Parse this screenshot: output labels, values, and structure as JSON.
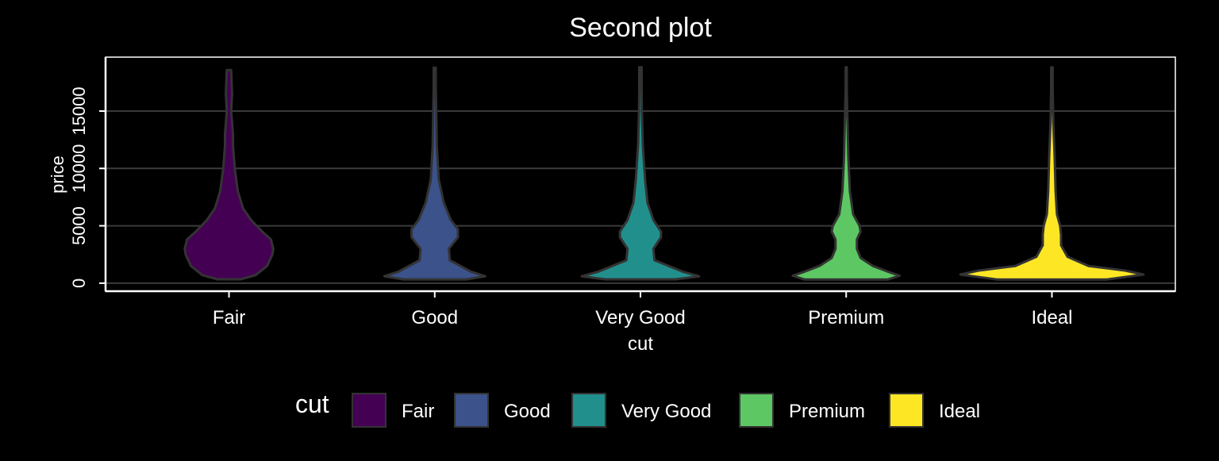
{
  "chart_data": {
    "type": "violin",
    "title": "Second plot",
    "xlabel": "cut",
    "ylabel": "price",
    "categories": [
      "Fair",
      "Good",
      "Very Good",
      "Premium",
      "Ideal"
    ],
    "ylim": [
      -700,
      19700
    ],
    "yticks": [
      0,
      5000,
      10000,
      15000
    ],
    "ytick_labels": [
      "0",
      "5000",
      "10000",
      "15000"
    ],
    "grid": true,
    "legend": {
      "title": "cut",
      "position": "bottom",
      "entries": [
        "Fair",
        "Good",
        "Very Good",
        "Premium",
        "Ideal"
      ]
    },
    "colors": [
      "#440154",
      "#3b528b",
      "#21908c",
      "#5dc863",
      "#fde725"
    ],
    "violin_outline_color": "#333333",
    "violins": [
      {
        "name": "Fair",
        "price_range": [
          337,
          18574
        ],
        "max_halfwidth_fraction": 0.43,
        "profile": [
          [
            337,
            0.26
          ],
          [
            700,
            0.6
          ],
          [
            1500,
            0.86
          ],
          [
            2500,
            0.98
          ],
          [
            3000,
            1.0
          ],
          [
            3800,
            0.95
          ],
          [
            4500,
            0.75
          ],
          [
            5500,
            0.5
          ],
          [
            6500,
            0.32
          ],
          [
            8000,
            0.2
          ],
          [
            10000,
            0.13
          ],
          [
            12000,
            0.09
          ],
          [
            13000,
            0.09
          ],
          [
            15000,
            0.05
          ],
          [
            16500,
            0.07
          ],
          [
            18574,
            0.05
          ]
        ]
      },
      {
        "name": "Good",
        "price_range": [
          327,
          18788
        ],
        "max_halfwidth_fraction": 0.49,
        "profile": [
          [
            327,
            0.62
          ],
          [
            600,
            1.0
          ],
          [
            1000,
            0.72
          ],
          [
            2000,
            0.3
          ],
          [
            3000,
            0.28
          ],
          [
            4000,
            0.46
          ],
          [
            4700,
            0.46
          ],
          [
            5500,
            0.32
          ],
          [
            7000,
            0.18
          ],
          [
            9000,
            0.08
          ],
          [
            12000,
            0.04
          ],
          [
            15000,
            0.03
          ],
          [
            17000,
            0.02
          ],
          [
            18788,
            0.02
          ]
        ]
      },
      {
        "name": "Very Good",
        "price_range": [
          336,
          18818
        ],
        "max_halfwidth_fraction": 0.57,
        "profile": [
          [
            336,
            0.6
          ],
          [
            600,
            1.0
          ],
          [
            1000,
            0.72
          ],
          [
            2000,
            0.24
          ],
          [
            3000,
            0.22
          ],
          [
            4000,
            0.35
          ],
          [
            4500,
            0.35
          ],
          [
            5500,
            0.22
          ],
          [
            7000,
            0.12
          ],
          [
            9000,
            0.08
          ],
          [
            12000,
            0.04
          ],
          [
            15000,
            0.025
          ],
          [
            17000,
            0.02
          ],
          [
            18818,
            0.02
          ]
        ]
      },
      {
        "name": "Premium",
        "price_range": [
          326,
          18823
        ],
        "max_halfwidth_fraction": 0.52,
        "profile": [
          [
            326,
            0.78
          ],
          [
            650,
            1.0
          ],
          [
            1000,
            0.78
          ],
          [
            1500,
            0.5
          ],
          [
            2200,
            0.27
          ],
          [
            3000,
            0.2
          ],
          [
            3800,
            0.2
          ],
          [
            4500,
            0.27
          ],
          [
            5000,
            0.25
          ],
          [
            6000,
            0.13
          ],
          [
            8000,
            0.07
          ],
          [
            11000,
            0.04
          ],
          [
            14000,
            0.025
          ],
          [
            17000,
            0.01
          ],
          [
            18823,
            0.01
          ]
        ]
      },
      {
        "name": "Ideal",
        "price_range": [
          326,
          18806
        ],
        "max_halfwidth_fraction": 0.89,
        "profile": [
          [
            326,
            0.6
          ],
          [
            750,
            1.0
          ],
          [
            1100,
            0.8
          ],
          [
            1500,
            0.4
          ],
          [
            2300,
            0.17
          ],
          [
            3300,
            0.1
          ],
          [
            4200,
            0.1
          ],
          [
            5000,
            0.09
          ],
          [
            6000,
            0.055
          ],
          [
            8000,
            0.04
          ],
          [
            11000,
            0.03
          ],
          [
            14000,
            0.015
          ],
          [
            17000,
            0.008
          ],
          [
            18806,
            0.008
          ]
        ]
      }
    ]
  }
}
